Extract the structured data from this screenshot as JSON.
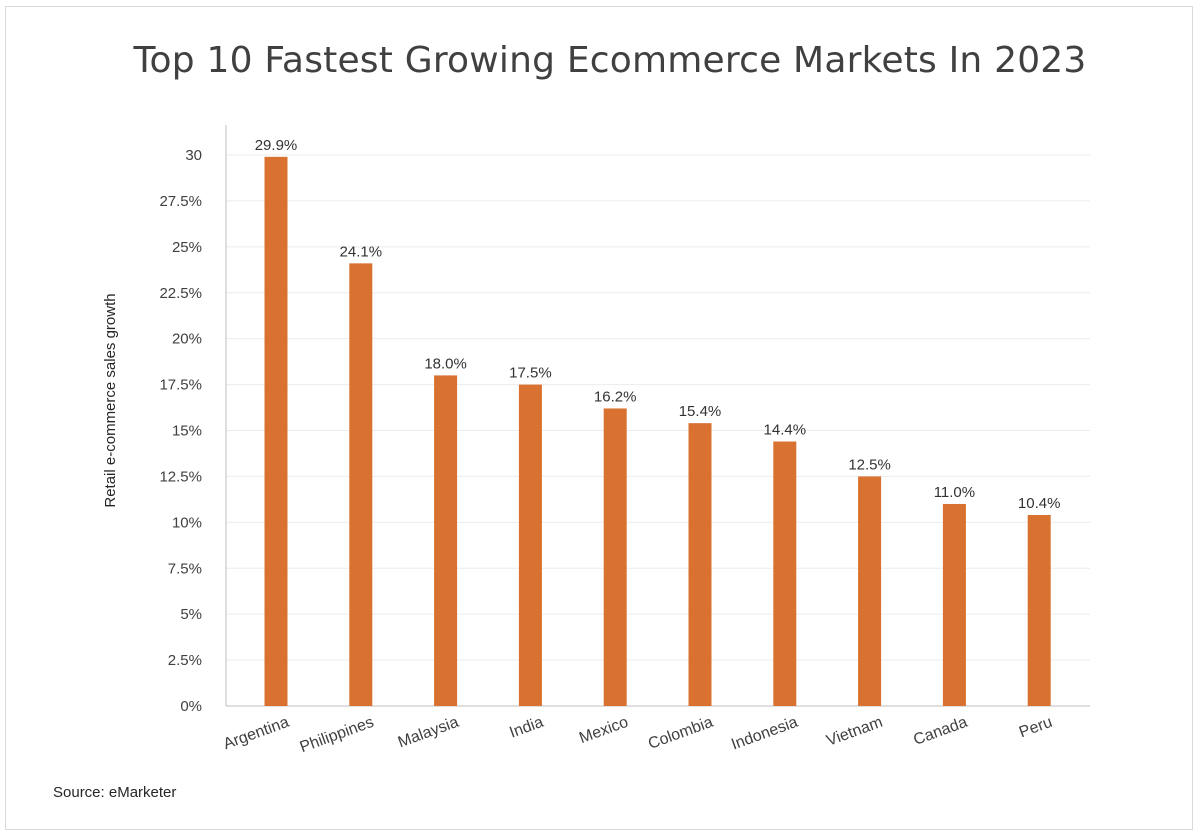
{
  "source": "Source: eMarketer",
  "chart_data": {
    "type": "bar",
    "title": "Top 10 Fastest Growing Ecommerce Markets In 2023",
    "ylabel": "Retail e-commerce sales growth",
    "xlabel": "",
    "categories": [
      "Argentina",
      "Philippines",
      "Malaysia",
      "India",
      "Mexico",
      "Colombia",
      "Indonesia",
      "Vietnam",
      "Canada",
      "Peru"
    ],
    "values": [
      29.9,
      24.1,
      18.0,
      17.5,
      16.2,
      15.4,
      14.4,
      12.5,
      11.0,
      10.4
    ],
    "data_labels": [
      "29.9%",
      "24.1%",
      "18.0%",
      "17.5%",
      "16.2%",
      "15.4%",
      "14.4%",
      "12.5%",
      "11.0%",
      "10.4%"
    ],
    "ylim": [
      0,
      30
    ],
    "yticks": [
      0,
      2.5,
      5,
      7.5,
      10,
      12.5,
      15,
      17.5,
      20,
      22.5,
      25,
      27.5,
      30
    ],
    "ytick_labels": [
      "0%",
      "2.5%",
      "5%",
      "7.5%",
      "10%",
      "12.5%",
      "15%",
      "17.5%",
      "20%",
      "22.5%",
      "25%",
      "27.5%",
      "30"
    ],
    "bar_color": "#d97130",
    "grid": true,
    "legend": "none"
  }
}
